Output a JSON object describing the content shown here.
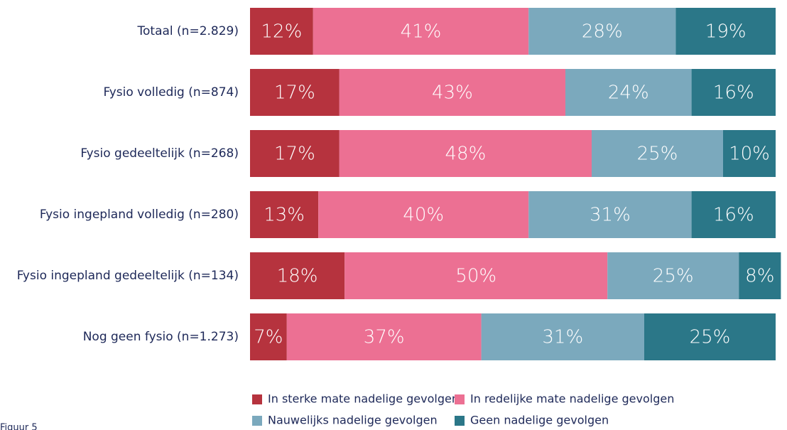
{
  "chart_data": {
    "type": "stacked-bar",
    "orientation": "horizontal",
    "categories": [
      "Totaal (n=2.829)",
      "Fysio volledig (n=874)",
      "Fysio gedeeltelijk (n=268)",
      "Fysio ingepland volledig (n=280)",
      "Fysio ingepland gedeeltelijk (n=134)",
      "Nog geen fysio (n=1.273)"
    ],
    "series": [
      {
        "name": "In sterke mate nadelige gevolgen",
        "color": "#b6333e",
        "values": [
          12,
          17,
          17,
          13,
          18,
          7
        ],
        "value_labels": [
          "12%",
          "17%",
          "17%",
          "13%",
          "18%",
          "7%"
        ]
      },
      {
        "name": "In redelijke mate nadelige gevolgen",
        "color": "#ec7093",
        "values": [
          41,
          43,
          48,
          40,
          50,
          37
        ],
        "value_labels": [
          "41%",
          "43%",
          "48%",
          "40%",
          "50%",
          "37%"
        ]
      },
      {
        "name": "Nauwelijks nadelige gevolgen",
        "color": "#7ba9bd",
        "values": [
          28,
          24,
          25,
          31,
          25,
          31
        ],
        "value_labels": [
          "28%",
          "24%",
          "25%",
          "31%",
          "25%",
          "31%"
        ]
      },
      {
        "name": "Geen nadelige gevolgen",
        "color": "#2b7788",
        "values": [
          19,
          16,
          10,
          16,
          8,
          25
        ],
        "value_labels": [
          "19%",
          "16%",
          "10%",
          "16%",
          "8%",
          "25%"
        ]
      }
    ],
    "xlim": [
      0,
      100
    ],
    "footnote": "Figuur 5"
  }
}
